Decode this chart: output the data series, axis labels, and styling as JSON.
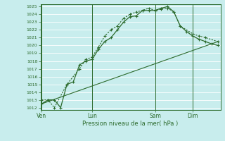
{
  "bg_color": "#c8eded",
  "grid_color": "#ffffff",
  "grid_minor_color": "#e8b8b8",
  "line_color": "#2d6b2d",
  "ylabel_min": 1012,
  "ylabel_max": 1025,
  "xlabel": "Pression niveau de la mer( hPa )",
  "xtick_labels": [
    "Ven",
    "Lun",
    "Sam",
    "Dim"
  ],
  "xtick_positions": [
    0,
    4,
    9,
    12
  ],
  "xmax": 14,
  "series1_x": [
    0,
    0.5,
    1.0,
    1.5,
    2,
    2.5,
    3,
    3.5,
    4,
    4.5,
    5,
    5.5,
    6,
    6.5,
    7,
    7.5,
    8,
    8.5,
    9,
    9.5,
    10,
    10.5,
    11,
    11.5,
    12,
    12.5,
    13,
    13.5,
    14
  ],
  "series1_y": [
    1012.5,
    1013.0,
    1013.0,
    1012.0,
    1015.0,
    1015.3,
    1017.5,
    1018.0,
    1018.2,
    1019.5,
    1020.5,
    1021.0,
    1022.0,
    1023.0,
    1023.7,
    1023.8,
    1024.5,
    1024.5,
    1024.5,
    1024.8,
    1025.0,
    1024.3,
    1022.5,
    1021.8,
    1021.2,
    1020.8,
    1020.5,
    1020.2,
    1020.0
  ],
  "series2_x": [
    0,
    0.5,
    1.0,
    2.0,
    3.0,
    3.5,
    4.0,
    4.5,
    5.0,
    5.5,
    6.0,
    6.5,
    7.0,
    7.5,
    8.0,
    8.5,
    9.0,
    9.5,
    10.0,
    10.5,
    11.0,
    12.0,
    12.5,
    13.0,
    14.0
  ],
  "series2_y": [
    1013.0,
    1013.0,
    1012.0,
    1015.0,
    1017.0,
    1018.2,
    1018.5,
    1019.8,
    1021.2,
    1022.0,
    1022.5,
    1023.5,
    1024.0,
    1024.3,
    1024.5,
    1024.8,
    1024.5,
    1024.7,
    1024.8,
    1024.3,
    1022.5,
    1021.5,
    1021.2,
    1021.0,
    1020.5
  ],
  "series3_x": [
    0,
    14
  ],
  "series3_y": [
    1012.5,
    1020.5
  ]
}
